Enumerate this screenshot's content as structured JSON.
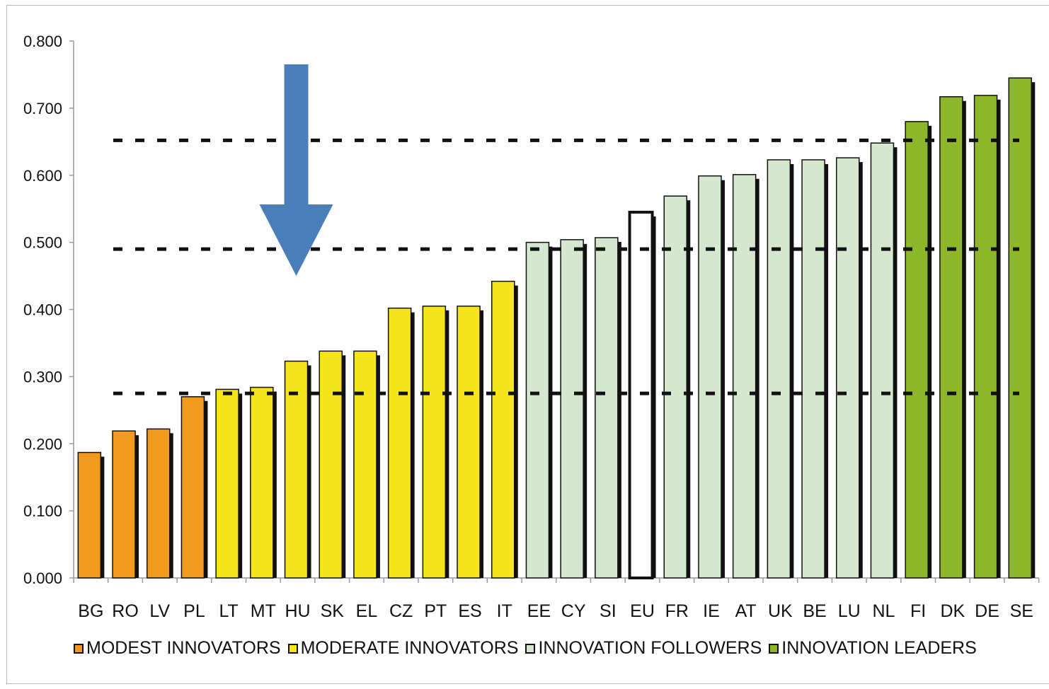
{
  "chart_data": {
    "type": "bar",
    "title": "",
    "xlabel": "",
    "ylabel": "",
    "ylim": [
      0,
      0.8
    ],
    "yticks": [
      "0.000",
      "0.100",
      "0.200",
      "0.300",
      "0.400",
      "0.500",
      "0.600",
      "0.700",
      "0.800"
    ],
    "categories": [
      "BG",
      "RO",
      "LV",
      "PL",
      "LT",
      "MT",
      "HU",
      "SK",
      "EL",
      "CZ",
      "PT",
      "ES",
      "IT",
      "EE",
      "CY",
      "SI",
      "EU",
      "FR",
      "IE",
      "AT",
      "UK",
      "BE",
      "LU",
      "NL",
      "FI",
      "DK",
      "DE",
      "SE"
    ],
    "values": [
      0.187,
      0.219,
      0.222,
      0.27,
      0.281,
      0.284,
      0.323,
      0.338,
      0.338,
      0.402,
      0.405,
      0.405,
      0.442,
      0.5,
      0.504,
      0.507,
      0.545,
      0.569,
      0.599,
      0.601,
      0.623,
      0.623,
      0.626,
      0.648,
      0.68,
      0.717,
      0.719,
      0.745
    ],
    "groups": [
      "modest",
      "modest",
      "modest",
      "modest",
      "moderate",
      "moderate",
      "moderate",
      "moderate",
      "moderate",
      "moderate",
      "moderate",
      "moderate",
      "moderate",
      "follower",
      "follower",
      "follower",
      "eu",
      "follower",
      "follower",
      "follower",
      "follower",
      "follower",
      "follower",
      "follower",
      "leader",
      "leader",
      "leader",
      "leader"
    ],
    "group_colors": {
      "modest": "#f29a1e",
      "moderate": "#f5e51a",
      "follower": "#d5e8cf",
      "leader": "#8db62a",
      "eu": "#ffffff"
    },
    "thresholds": [
      0.275,
      0.49,
      0.652
    ],
    "grid": false,
    "legend_position": "bottom",
    "legend": [
      {
        "label": "MODEST INNOVATORS",
        "color": "#f29a1e"
      },
      {
        "label": "MODERATE INNOVATORS",
        "color": "#f5e51a"
      },
      {
        "label": "INNOVATION FOLLOWERS",
        "color": "#d5e8cf"
      },
      {
        "label": "INNOVATION LEADERS",
        "color": "#8db62a"
      }
    ],
    "annotation": {
      "type": "arrow",
      "points_to": "HU",
      "color": "#4a7ebb"
    }
  }
}
